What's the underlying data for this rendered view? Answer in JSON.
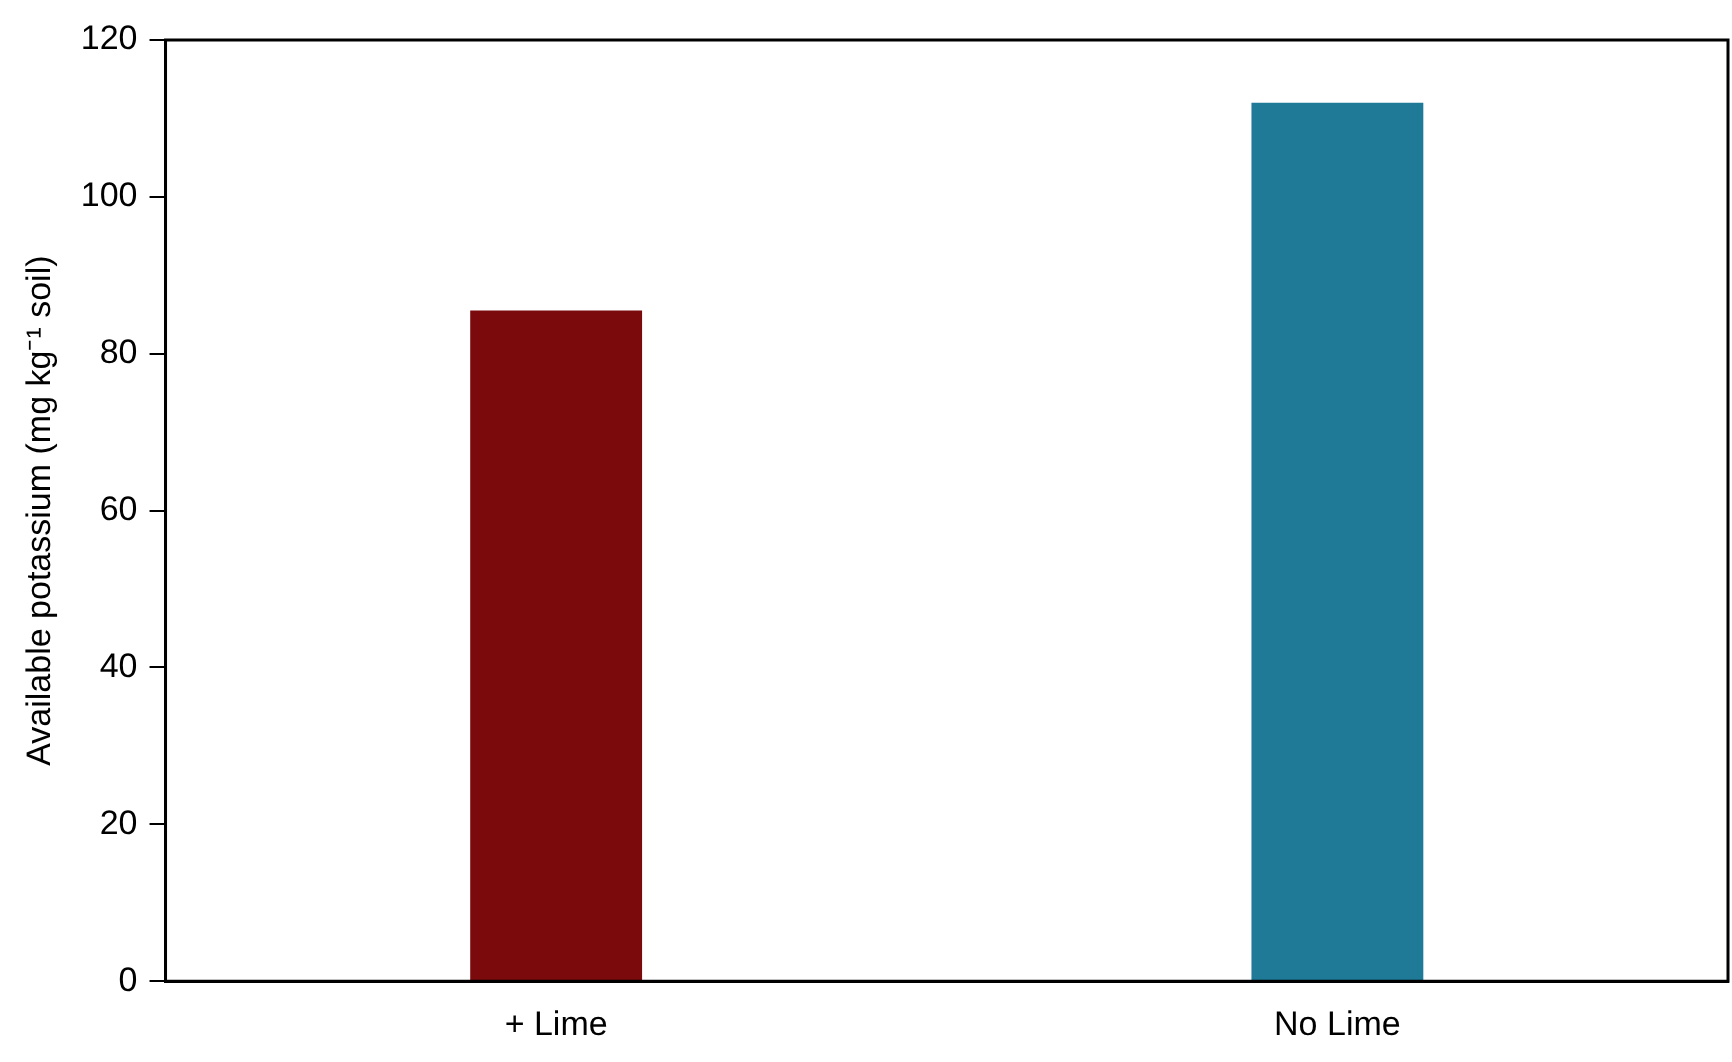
{
  "chart_data": {
    "type": "bar",
    "ylabel": "Available potassium (mg kg⁻¹ soil)",
    "categories": [
      "+ Lime",
      "No Lime"
    ],
    "values": [
      85.5,
      112
    ],
    "colors": [
      "#7b0a0c",
      "#1f7a98"
    ],
    "ylim": [
      0,
      120
    ],
    "yticks": [
      0,
      20,
      40,
      60,
      80,
      100,
      120
    ],
    "grid": false,
    "legend": false
  }
}
